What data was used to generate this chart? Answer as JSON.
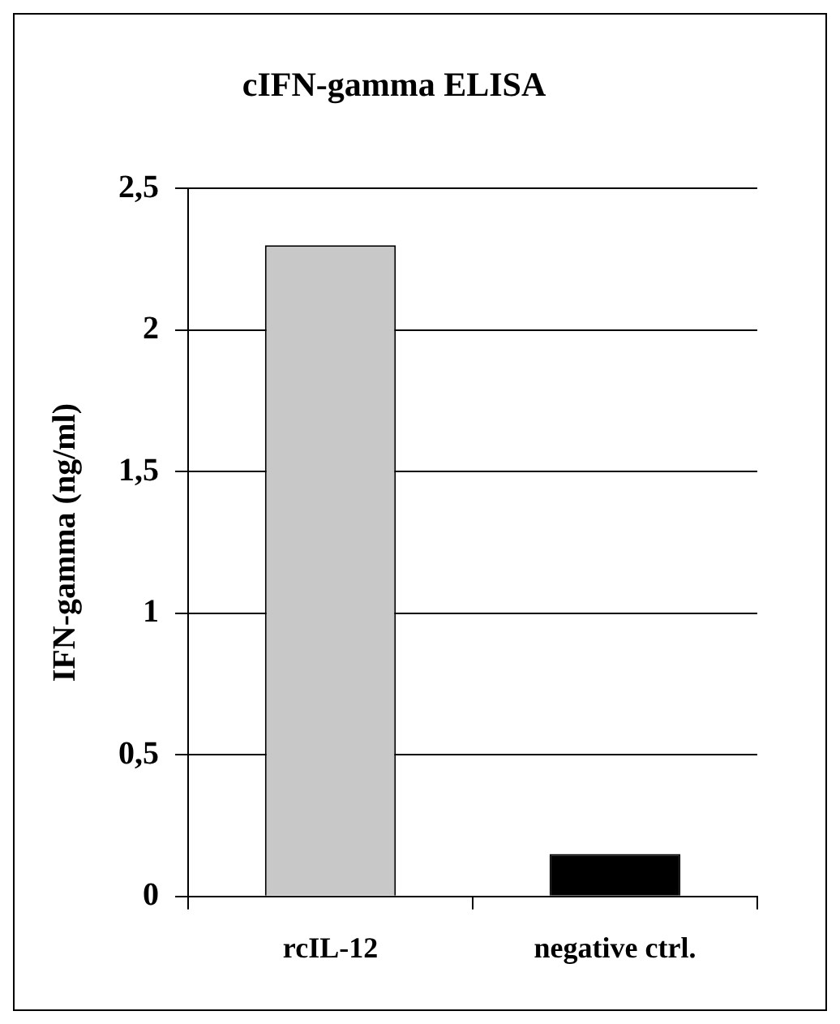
{
  "chart_data": {
    "type": "bar",
    "title": "cIFN-gamma ELISA",
    "ylabel": "IFN-gamma (ng/ml)",
    "categories": [
      "rcIL-12",
      "negative ctrl."
    ],
    "series": [
      {
        "colors": [
          "#c8c8c8",
          "#000000"
        ],
        "values": [
          2.3,
          0.15
        ]
      }
    ],
    "ylim": [
      0,
      2.5
    ],
    "yticks": [
      0,
      {
        "value": 0.5,
        "label": "0,5"
      },
      1,
      {
        "value": 1.5,
        "label": "1,5"
      },
      2,
      {
        "value": 2.5,
        "label": "2,5"
      }
    ],
    "grid": "y",
    "legend": false
  }
}
